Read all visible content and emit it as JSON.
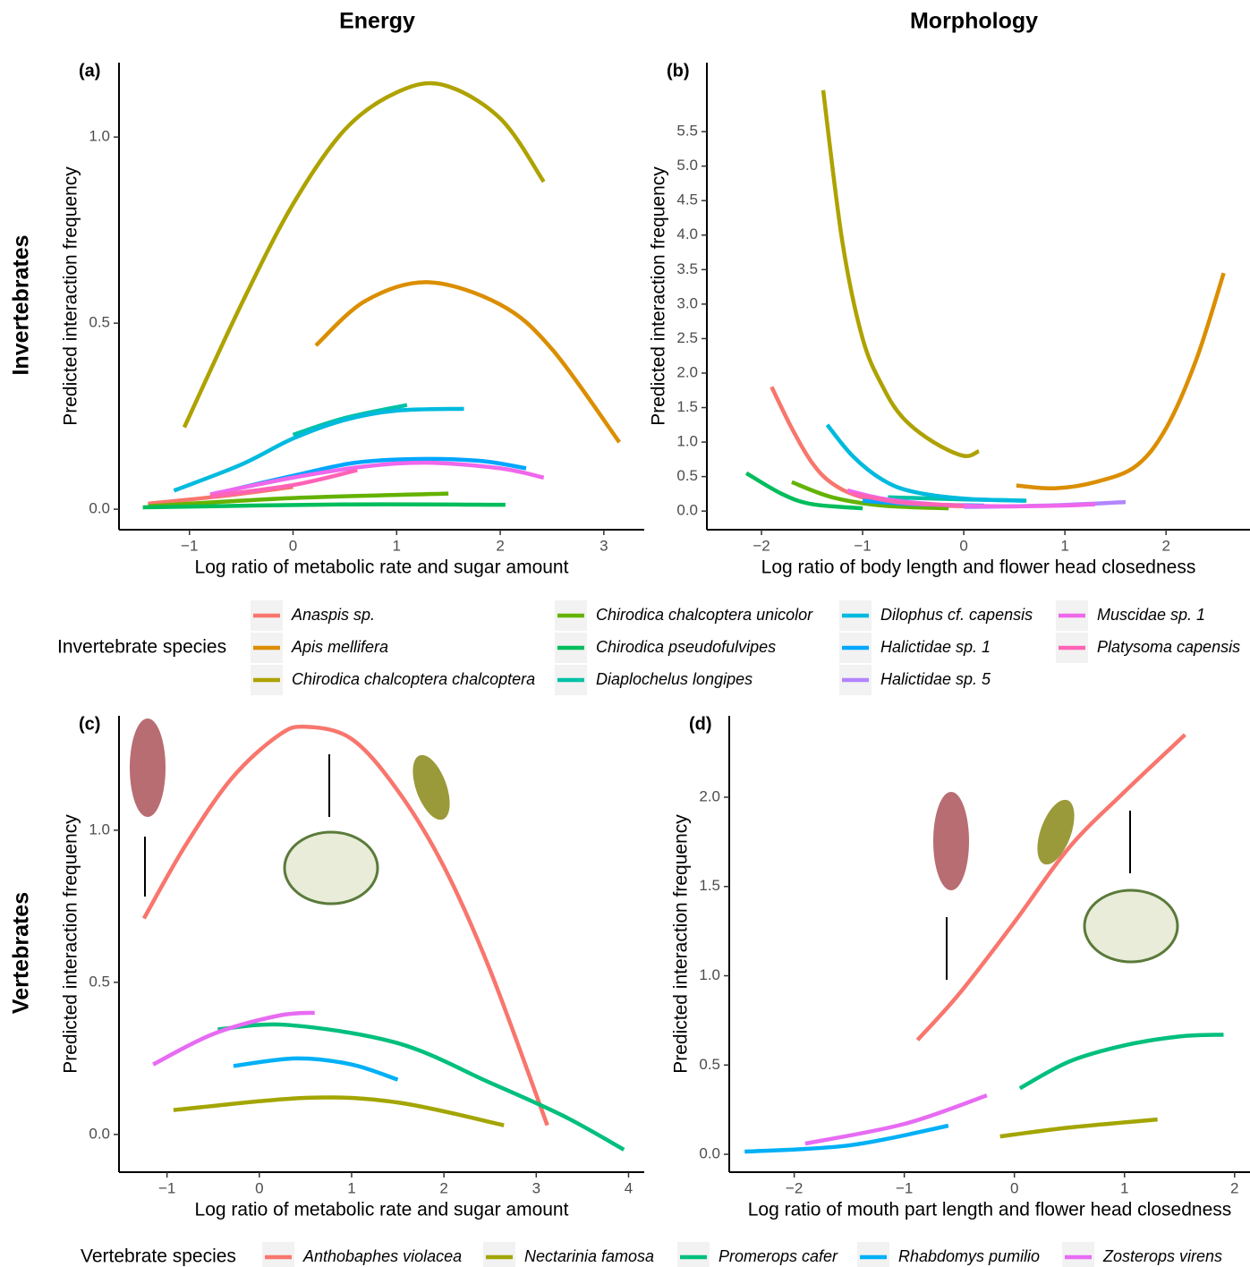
{
  "chart_data": [
    {
      "type": "line",
      "title": "Energy",
      "panel_label": "(a)",
      "row_label": "Invertebrates",
      "xlabel": "Log ratio of metabolic rate and sugar amount",
      "ylabel": "Predicted interaction frequency",
      "xlim": [
        -1.68,
        3.39
      ],
      "ylim": [
        -0.055,
        1.2
      ],
      "xticks": [
        {
          "value": -1,
          "label": "−1"
        },
        0,
        1,
        2,
        3
      ],
      "yticks": [
        {
          "value": 0,
          "label": "0.0"
        },
        0.5,
        {
          "value": 1,
          "label": "1.0"
        }
      ],
      "series": [
        {
          "name": "Anaspis sp.",
          "color": "#F8766D",
          "x": [
            -1.4,
            -0.7,
            0
          ],
          "values": [
            0.015,
            0.035,
            0.06
          ]
        },
        {
          "name": "Apis mellifera",
          "color": "#DB8E00",
          "x": [
            0.22,
            0.7,
            1.3,
            2.0,
            2.5,
            3.15
          ],
          "values": [
            0.44,
            0.56,
            0.61,
            0.55,
            0.43,
            0.18
          ]
        },
        {
          "name": "Chirodica chalcoptera chalcoptera",
          "color": "#AEA200",
          "x": [
            -1.05,
            -0.5,
            0,
            0.5,
            1.0,
            1.45,
            2.0,
            2.42
          ],
          "values": [
            0.22,
            0.55,
            0.82,
            1.02,
            1.12,
            1.14,
            1.05,
            0.88
          ]
        },
        {
          "name": "Chirodica chalcoptera unicolor",
          "color": "#64B200",
          "x": [
            -1.4,
            0,
            1.5
          ],
          "values": [
            0.008,
            0.03,
            0.042
          ]
        },
        {
          "name": "Chirodica pseudofulvipes",
          "color": "#00BD5C",
          "x": [
            -1.45,
            0.5,
            2.05
          ],
          "values": [
            0.005,
            0.013,
            0.012
          ]
        },
        {
          "name": "Diaplochelus longipes",
          "color": "#00C1A7",
          "x": [
            0,
            0.5,
            1.1
          ],
          "values": [
            0.2,
            0.245,
            0.28
          ]
        },
        {
          "name": "Dilophus cf. capensis",
          "color": "#00BADE",
          "x": [
            -1.15,
            -0.5,
            0,
            0.5,
            1.0,
            1.65
          ],
          "values": [
            0.05,
            0.12,
            0.19,
            0.24,
            0.265,
            0.27
          ]
        },
        {
          "name": "Halictidae sp. 1",
          "color": "#00A6FF",
          "x": [
            -0.7,
            0,
            0.6,
            1.2,
            1.8,
            2.25
          ],
          "values": [
            0.045,
            0.09,
            0.125,
            0.135,
            0.13,
            0.11
          ]
        },
        {
          "name": "Muscidae sp. 1",
          "color": "#EF67EB",
          "x": [
            -0.8,
            0,
            0.7,
            1.3,
            2.0,
            2.42
          ],
          "values": [
            0.04,
            0.085,
            0.115,
            0.125,
            0.11,
            0.085
          ]
        },
        {
          "name": "Platysoma capensis",
          "color": "#FF63B6",
          "x": [
            -0.8,
            0,
            0.62
          ],
          "values": [
            0.035,
            0.065,
            0.105
          ]
        }
      ]
    },
    {
      "type": "line",
      "title": "Morphology",
      "panel_label": "(b)",
      "legend_title": "Invertebrate species",
      "xlabel": "Log ratio of body length and flower head closedness",
      "ylabel": "Predicted interaction frequency",
      "xlim": [
        -2.54,
        2.83
      ],
      "ylim": [
        -0.27,
        6.5
      ],
      "xticks": [
        {
          "value": -2,
          "label": "−2"
        },
        {
          "value": -1,
          "label": "−1"
        },
        0,
        1,
        2
      ],
      "yticks": [
        {
          "value": 0,
          "label": "0.0"
        },
        0.5,
        {
          "value": 1,
          "label": "1.0"
        },
        1.5,
        {
          "value": 2,
          "label": "2.0"
        },
        2.5,
        {
          "value": 3,
          "label": "3.0"
        },
        3.5,
        {
          "value": 4,
          "label": "4.0"
        },
        4.5,
        {
          "value": 5,
          "label": "5.0"
        },
        5.5
      ],
      "series": [
        {
          "name": "Anaspis sp.",
          "color": "#F8766D",
          "x": [
            -1.9,
            -1.7,
            -1.5,
            -1.3,
            -1.0,
            -0.5,
            0
          ],
          "values": [
            1.8,
            1.2,
            0.7,
            0.4,
            0.2,
            0.1,
            0.07
          ]
        },
        {
          "name": "Apis mellifera",
          "color": "#DB8E00",
          "x": [
            0.52,
            0.9,
            1.3,
            1.7,
            2.0,
            2.3,
            2.57
          ],
          "values": [
            0.37,
            0.33,
            0.42,
            0.65,
            1.2,
            2.2,
            3.45
          ]
        },
        {
          "name": "Chirodica chalcoptera chalcoptera",
          "color": "#AEA200",
          "x": [
            -1.39,
            -1.2,
            -1.0,
            -0.8,
            -0.6,
            -0.3,
            0,
            0.15
          ],
          "values": [
            6.1,
            3.9,
            2.5,
            1.8,
            1.35,
            1.0,
            0.8,
            0.87
          ]
        },
        {
          "name": "Chirodica chalcoptera unicolor",
          "color": "#64B200",
          "x": [
            -1.7,
            -1.3,
            -0.8,
            -0.15
          ],
          "values": [
            0.42,
            0.2,
            0.08,
            0.04
          ]
        },
        {
          "name": "Chirodica pseudofulvipes",
          "color": "#00BD5C",
          "x": [
            -2.15,
            -1.8,
            -1.5,
            -1.0
          ],
          "values": [
            0.55,
            0.25,
            0.1,
            0.04
          ]
        },
        {
          "name": "Diaplochelus longipes",
          "color": "#00C1A7",
          "x": [
            -0.75,
            0,
            0.62
          ],
          "values": [
            0.2,
            0.17,
            0.15
          ]
        },
        {
          "name": "Dilophus cf. capensis",
          "color": "#00BADE",
          "x": [
            -1.35,
            -1.1,
            -0.8,
            -0.5,
            0,
            0.6
          ],
          "values": [
            1.25,
            0.8,
            0.45,
            0.28,
            0.18,
            0.15
          ]
        },
        {
          "name": "Halictidae sp. 1",
          "color": "#00A6FF",
          "x": [
            -1.0,
            -0.5,
            0.2
          ],
          "values": [
            0.15,
            0.1,
            0.08
          ]
        },
        {
          "name": "Halictidae sp. 5",
          "color": "#B385FF",
          "x": [
            0,
            0.8,
            1.6
          ],
          "values": [
            0.06,
            0.08,
            0.13
          ]
        },
        {
          "name": "Muscidae sp. 1",
          "color": "#EF67EB",
          "x": [
            -1.15,
            -0.8,
            -0.3,
            0.3,
            1.0,
            1.3
          ],
          "values": [
            0.3,
            0.18,
            0.1,
            0.07,
            0.08,
            0.1
          ]
        },
        {
          "name": "Platysoma capensis",
          "color": "#FF63B6",
          "x": [
            -1.1,
            -0.6,
            0
          ],
          "values": [
            0.25,
            0.12,
            0.08
          ]
        }
      ]
    },
    {
      "type": "line",
      "panel_label": "(c)",
      "row_label": "Vertebrates",
      "xlabel": "Log ratio of metabolic rate and sugar amount",
      "ylabel": "Predicted interaction frequency",
      "xlim": [
        -1.52,
        4.17
      ],
      "ylim": [
        -0.124,
        1.376
      ],
      "xticks": [
        {
          "value": -1,
          "label": "−1"
        },
        0,
        1,
        2,
        3,
        4
      ],
      "yticks": [
        {
          "value": 0,
          "label": "0.0"
        },
        0.5,
        {
          "value": 1,
          "label": "1.0"
        }
      ],
      "series": [
        {
          "name": "Anthobaphes violacea",
          "color": "#F8766D",
          "x": [
            -1.25,
            -0.8,
            -0.3,
            0.2,
            0.5,
            1.0,
            1.5,
            2.0,
            2.5,
            3.12
          ],
          "values": [
            0.71,
            0.95,
            1.17,
            1.31,
            1.34,
            1.3,
            1.13,
            0.88,
            0.54,
            0.03
          ]
        },
        {
          "name": "Nectarinia famosa",
          "color": "#A3A500",
          "x": [
            -0.93,
            0.5,
            1.5,
            2.65
          ],
          "values": [
            0.08,
            0.12,
            0.105,
            0.03
          ]
        },
        {
          "name": "Promerops cafer",
          "color": "#00BF7D",
          "x": [
            -0.45,
            0.3,
            1.5,
            2.5,
            3.3,
            3.95
          ],
          "values": [
            0.345,
            0.36,
            0.3,
            0.17,
            0.06,
            -0.05
          ]
        },
        {
          "name": "Rhabdomys pumilio",
          "color": "#00B0F6",
          "x": [
            -0.28,
            0.4,
            1.0,
            1.5
          ],
          "values": [
            0.225,
            0.25,
            0.23,
            0.18
          ]
        },
        {
          "name": "Zosterops virens",
          "color": "#E76BF3",
          "x": [
            -1.15,
            -0.5,
            0.2,
            0.6
          ],
          "values": [
            0.23,
            0.33,
            0.39,
            0.4
          ]
        }
      ]
    },
    {
      "type": "line",
      "panel_label": "(d)",
      "legend_title": "Vertebrate species",
      "xlabel": "Log ratio of mouth part length and flower head closedness",
      "ylabel": "Predicted interaction frequency",
      "xlim": [
        -2.59,
        2.14
      ],
      "ylim": [
        -0.1,
        2.456
      ],
      "xticks": [
        {
          "value": -2,
          "label": "−2"
        },
        {
          "value": -1,
          "label": "−1"
        },
        0,
        1,
        2
      ],
      "yticks": [
        {
          "value": 0,
          "label": "0.0"
        },
        0.5,
        {
          "value": 1,
          "label": "1.0"
        },
        1.5,
        {
          "value": 2,
          "label": "2.0"
        }
      ],
      "series": [
        {
          "name": "Anthobaphes violacea",
          "color": "#F8766D",
          "x": [
            -0.88,
            -0.5,
            0,
            0.5,
            1.0,
            1.55
          ],
          "values": [
            0.64,
            0.9,
            1.3,
            1.72,
            2.03,
            2.35
          ]
        },
        {
          "name": "Nectarinia famosa",
          "color": "#A3A500",
          "x": [
            -0.13,
            0.5,
            1.3
          ],
          "values": [
            0.1,
            0.15,
            0.195
          ]
        },
        {
          "name": "Promerops cafer",
          "color": "#00BF7D",
          "x": [
            0.05,
            0.5,
            1.0,
            1.5,
            1.9
          ],
          "values": [
            0.37,
            0.52,
            0.61,
            0.66,
            0.67
          ]
        },
        {
          "name": "Rhabdomys pumilio",
          "color": "#00B0F6",
          "x": [
            -2.45,
            -1.5,
            -0.6
          ],
          "values": [
            0.015,
            0.05,
            0.16
          ]
        },
        {
          "name": "Zosterops virens",
          "color": "#E76BF3",
          "x": [
            -1.9,
            -1.0,
            -0.25
          ],
          "values": [
            0.06,
            0.17,
            0.33
          ]
        }
      ]
    }
  ]
}
